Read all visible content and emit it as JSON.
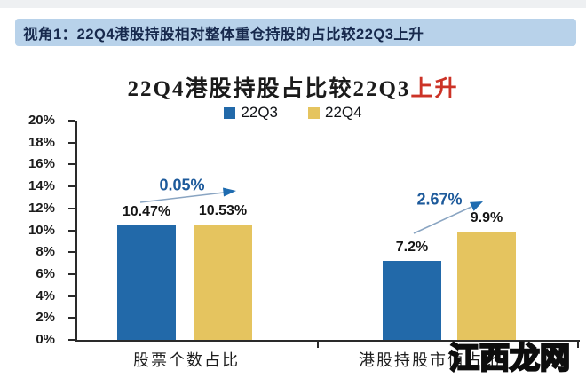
{
  "header": {
    "text": "视角1：22Q4港股持股相对整体重仓持股的占比较22Q3上升",
    "bg_color": "#b8d2ea",
    "text_color": "#17294d"
  },
  "chart_data": {
    "type": "bar",
    "title": "22Q4港股持股占比较22Q3",
    "title_highlight": "上升",
    "title_highlight_color": "#cc3327",
    "categories": [
      "股票个数占比",
      "港股持股市值占比"
    ],
    "series": [
      {
        "name": "22Q3",
        "color": "#2269a9",
        "values": [
          10.47,
          7.2
        ],
        "value_labels": [
          "10.47%",
          "7.2%"
        ]
      },
      {
        "name": "22Q4",
        "color": "#e5c45f",
        "values": [
          10.53,
          9.9
        ],
        "value_labels": [
          "10.53%",
          "9.9%"
        ]
      }
    ],
    "ylim": [
      0,
      20
    ],
    "yticks": {
      "values": [
        0,
        2,
        4,
        6,
        8,
        10,
        12,
        14,
        16,
        18,
        20
      ],
      "labels": [
        "0%",
        "2%",
        "4%",
        "6%",
        "8%",
        "10%",
        "12%",
        "14%",
        "16%",
        "18%",
        "20%"
      ]
    },
    "xlabel": "",
    "ylabel": "",
    "grid": false,
    "legend_position": "top",
    "annotations": [
      {
        "text": "0.05%",
        "group": 0,
        "color": "#1d5a9b"
      },
      {
        "text": "2.67%",
        "group": 1,
        "color": "#1d5a9b"
      }
    ],
    "axis_color": "#2a2a2a"
  },
  "watermark": {
    "part1": "江西",
    "part2": "龙网",
    "part1_color": "#f6921e",
    "part2_color": "#fdfdf6"
  }
}
